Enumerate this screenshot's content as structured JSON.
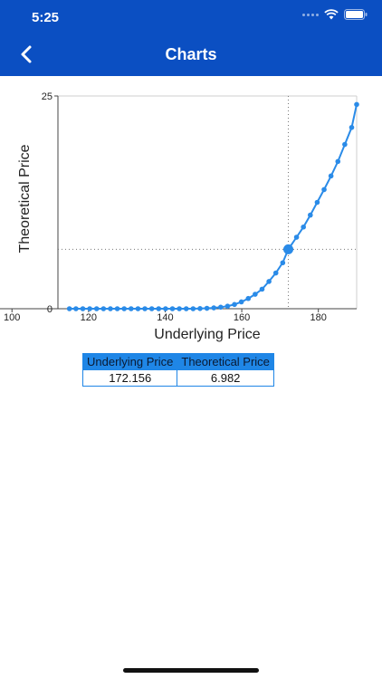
{
  "status_bar": {
    "time": "5:25"
  },
  "header": {
    "title": "Charts"
  },
  "chart_data": {
    "type": "line",
    "xlabel": "Underlying Price",
    "ylabel": "Theoretical Price",
    "xlim": [
      112,
      190
    ],
    "ylim": [
      0,
      25
    ],
    "xticks": [
      100,
      120,
      140,
      160,
      180
    ],
    "xtick_labels": [
      "100",
      "120",
      "140",
      "160",
      "180"
    ],
    "yticks": [
      0,
      25
    ],
    "ytick_labels": [
      "0",
      "25"
    ],
    "series": [
      {
        "x": [
          115,
          116.7,
          118.5,
          120.3,
          122.1,
          123.9,
          125.7,
          127.5,
          129.3,
          131.1,
          132.9,
          134.7,
          136.5,
          138.3,
          140.1,
          141.9,
          143.7,
          145.5,
          147.3,
          149.1,
          150.9,
          152.7,
          154.5,
          156.3,
          158.1,
          159.9,
          161.7,
          163.5,
          165.3,
          167.1,
          168.9,
          170.7,
          172.156,
          174.3,
          176.1,
          177.9,
          179.7,
          181.5,
          183.3,
          185.1,
          186.9,
          188.7,
          190
        ],
        "y": [
          0,
          0,
          0,
          0,
          0,
          0,
          0,
          0,
          0,
          0,
          0,
          0,
          0,
          0,
          0,
          0,
          0,
          0,
          0,
          0.02,
          0.05,
          0.1,
          0.18,
          0.3,
          0.5,
          0.8,
          1.2,
          1.7,
          2.3,
          3.2,
          4.2,
          5.4,
          6.982,
          8.4,
          9.6,
          11,
          12.5,
          14,
          15.6,
          17.3,
          19.3,
          21.3,
          24
        ]
      }
    ],
    "marker": {
      "x": 172.156,
      "y": 6.982
    },
    "line_color": "#2a8be8",
    "crosshair": "dotted",
    "grid": false
  },
  "readout": {
    "headers": [
      "Underlying Price",
      "Theoretical Price"
    ],
    "values": [
      "172.156",
      "6.982"
    ]
  },
  "colors": {
    "header_bg": "#0b4fc2",
    "accent": "#1f86e6"
  }
}
